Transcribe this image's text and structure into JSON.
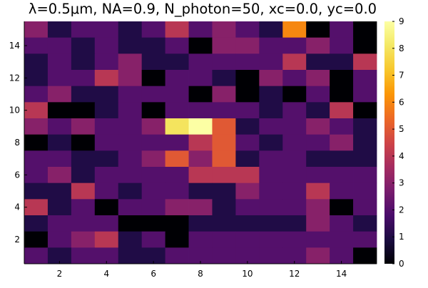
{
  "chart_data": {
    "type": "heatmap",
    "title": "λ=0.5μm, NA=0.9, N_photon=50, xc=0.0, yc=0.0",
    "xlabel": "",
    "ylabel": "",
    "x": [
      1,
      2,
      3,
      4,
      5,
      6,
      7,
      8,
      9,
      10,
      11,
      12,
      13,
      14,
      15
    ],
    "y": [
      1,
      2,
      3,
      4,
      5,
      6,
      7,
      8,
      9,
      10,
      11,
      12,
      13,
      14,
      15
    ],
    "xlim": [
      0.5,
      15.5
    ],
    "ylim": [
      0.5,
      15.5
    ],
    "x_ticks": [
      2,
      4,
      6,
      8,
      10,
      12,
      14
    ],
    "y_ticks": [
      2,
      4,
      6,
      8,
      10,
      12,
      14
    ],
    "colorbar": {
      "min": 0,
      "max": 9,
      "ticks": [
        0,
        1,
        2,
        3,
        4,
        5,
        6,
        7,
        8,
        9
      ],
      "colormap": "inferno"
    },
    "grid": false,
    "z_rows_top_to_bottom": [
      [
        3,
        1,
        2,
        2,
        1,
        2,
        4,
        2,
        3,
        2,
        1,
        6,
        0,
        2,
        0
      ],
      [
        2,
        2,
        1,
        2,
        1,
        1,
        2,
        0,
        3,
        3,
        2,
        2,
        3,
        2,
        0
      ],
      [
        1,
        2,
        1,
        2,
        3,
        1,
        1,
        2,
        2,
        2,
        2,
        4,
        1,
        1,
        4
      ],
      [
        1,
        2,
        2,
        4,
        3,
        0,
        2,
        2,
        1,
        0,
        3,
        2,
        3,
        0,
        2
      ],
      [
        2,
        3,
        1,
        1,
        2,
        2,
        2,
        0,
        3,
        0,
        1,
        0,
        2,
        0,
        2
      ],
      [
        4,
        0,
        0,
        1,
        2,
        0,
        2,
        2,
        2,
        2,
        1,
        2,
        1,
        4,
        0
      ],
      [
        3,
        2,
        3,
        2,
        2,
        3,
        8,
        9,
        5,
        1,
        2,
        2,
        3,
        2,
        1
      ],
      [
        0,
        1,
        0,
        2,
        2,
        2,
        2,
        4,
        5,
        2,
        1,
        2,
        2,
        3,
        1
      ],
      [
        2,
        2,
        1,
        1,
        2,
        3,
        5,
        3,
        5,
        1,
        2,
        2,
        1,
        1,
        1
      ],
      [
        2,
        3,
        1,
        2,
        2,
        2,
        2,
        4,
        4,
        4,
        2,
        2,
        2,
        2,
        2
      ],
      [
        1,
        1,
        4,
        2,
        1,
        2,
        2,
        1,
        1,
        3,
        2,
        2,
        4,
        2,
        2
      ],
      [
        4,
        1,
        2,
        0,
        2,
        2,
        3,
        3,
        1,
        2,
        2,
        2,
        3,
        0,
        2
      ],
      [
        1,
        2,
        2,
        2,
        0,
        0,
        0,
        1,
        1,
        1,
        1,
        1,
        3,
        2,
        1
      ],
      [
        0,
        2,
        3,
        4,
        1,
        2,
        0,
        2,
        2,
        2,
        2,
        2,
        2,
        2,
        2
      ],
      [
        2,
        1,
        2,
        2,
        1,
        1,
        2,
        2,
        2,
        2,
        2,
        2,
        3,
        2,
        0
      ]
    ]
  }
}
